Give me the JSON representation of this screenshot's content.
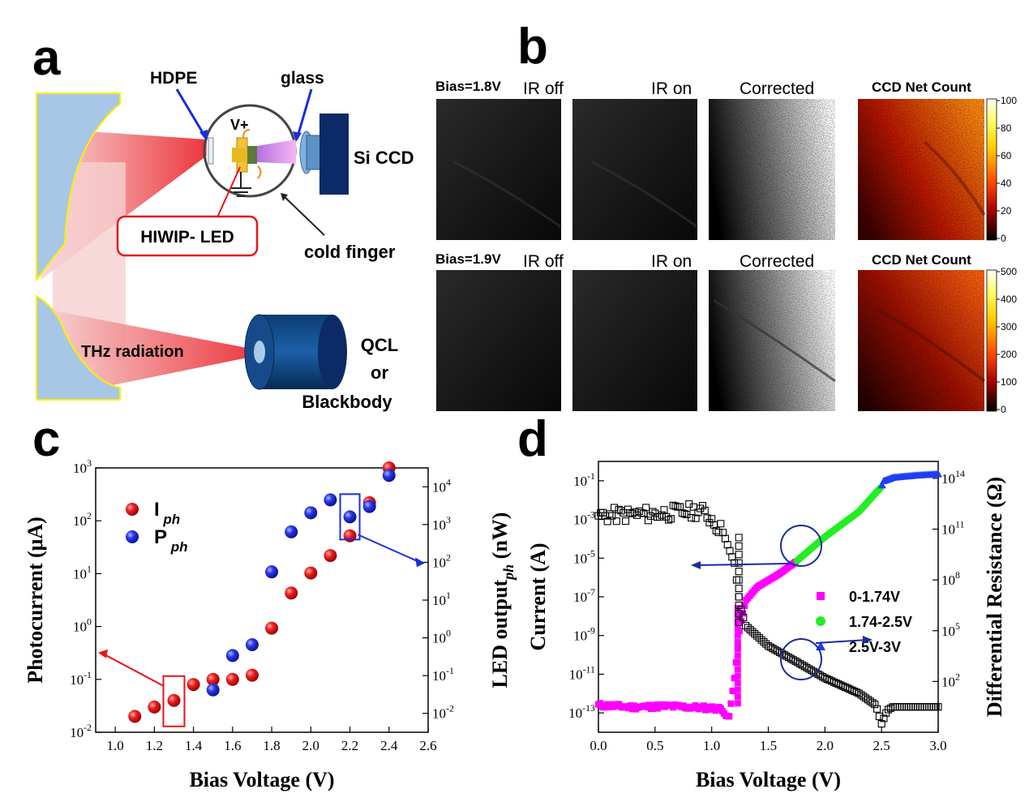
{
  "panels": {
    "a": "a",
    "b": "b",
    "c": "c",
    "d": "d"
  },
  "panel_a": {
    "hdpe": "HDPE",
    "glass": "glass",
    "vplus": "V+",
    "si_ccd": "Si CCD",
    "hiwip": "HIWIP- LED",
    "cold_finger": "cold finger",
    "thz": "THz radiation",
    "qcl": "QCL",
    "or": "or",
    "blackbody": "Blackbody"
  },
  "panel_b": {
    "row1_bias": "Bias=1.8V",
    "row2_bias": "Bias=1.9V",
    "ir_off": "IR off",
    "ir_on": "IR on",
    "corrected": "Corrected",
    "ccd_net_count": "CCD Net Count",
    "cb1_ticks": [
      "100",
      "80",
      "60",
      "40",
      "20",
      "0"
    ],
    "cb2_ticks": [
      "500",
      "400",
      "300",
      "200",
      "100",
      "0"
    ]
  },
  "chart_data": [
    {
      "id": "c",
      "type": "scatter",
      "xlabel": "Bias Voltage (V)",
      "ylabel": "Photocurrent (μA)",
      "y2label": "LED output",
      "y2label_sub": "ph",
      "y2label_unit": "(nW)",
      "xlim": [
        0.9,
        2.6
      ],
      "ylim_log10": [
        -2,
        3
      ],
      "y2lim_log10": [
        -2.5,
        4.5
      ],
      "x_ticks": [
        "1.0",
        "1.2",
        "1.4",
        "1.6",
        "1.8",
        "2.0",
        "2.2",
        "2.4",
        "2.6"
      ],
      "y_ticks": [
        {
          "base": "10",
          "exp": "-2"
        },
        {
          "base": "10",
          "exp": "-1"
        },
        {
          "base": "10",
          "exp": "0"
        },
        {
          "base": "10",
          "exp": "1"
        },
        {
          "base": "10",
          "exp": "2"
        },
        {
          "base": "10",
          "exp": "3"
        }
      ],
      "y2_ticks": [
        {
          "base": "10",
          "exp": "-2"
        },
        {
          "base": "10",
          "exp": "-1"
        },
        {
          "base": "10",
          "exp": "0"
        },
        {
          "base": "10",
          "exp": "1"
        },
        {
          "base": "10",
          "exp": "2"
        },
        {
          "base": "10",
          "exp": "3"
        },
        {
          "base": "10",
          "exp": "4"
        }
      ],
      "legend": [
        {
          "name": "I",
          "sub": "ph",
          "color": "#e8141b"
        },
        {
          "name": "P",
          "sub": "ph",
          "color": "#1a2de0"
        }
      ],
      "series": [
        {
          "name": "Iph",
          "axis": "left",
          "color": "#e8141b",
          "x": [
            1.1,
            1.2,
            1.3,
            1.4,
            1.5,
            1.6,
            1.7,
            1.8,
            1.9,
            2.0,
            2.1,
            2.2,
            2.3,
            2.4
          ],
          "y": [
            0.02,
            0.03,
            0.04,
            0.08,
            0.1,
            0.1,
            0.12,
            0.93,
            4.3,
            10.3,
            22,
            52,
            220,
            1000
          ]
        },
        {
          "name": "Pph",
          "axis": "right",
          "color": "#1a2de0",
          "x": [
            1.5,
            1.6,
            1.7,
            1.8,
            1.9,
            2.0,
            2.1,
            2.2,
            2.3,
            2.4
          ],
          "y": [
            0.042,
            0.34,
            0.66,
            56,
            640,
            2050,
            4500,
            1600,
            3000,
            20000
          ]
        }
      ]
    },
    {
      "id": "d",
      "type": "scatter",
      "xlabel": "Bias Voltage (V)",
      "ylabel": "Current (A)",
      "y2label": "Differential Resistance (Ω)",
      "xlim": [
        0.0,
        3.0
      ],
      "ylim_log10": [
        -14,
        0
      ],
      "y2lim_log10": [
        -1,
        15
      ],
      "x_ticks": [
        "0.0",
        "0.5",
        "1.0",
        "1.5",
        "2.0",
        "2.5",
        "3.0"
      ],
      "y_ticks": [
        {
          "base": "10",
          "exp": "-13"
        },
        {
          "base": "10",
          "exp": "-11"
        },
        {
          "base": "10",
          "exp": "-9"
        },
        {
          "base": "10",
          "exp": "-7"
        },
        {
          "base": "10",
          "exp": "-5"
        },
        {
          "base": "10",
          "exp": "-3"
        },
        {
          "base": "10",
          "exp": "-1"
        }
      ],
      "y2_ticks": [
        {
          "base": "10",
          "exp": "2"
        },
        {
          "base": "10",
          "exp": "5"
        },
        {
          "base": "10",
          "exp": "8"
        },
        {
          "base": "10",
          "exp": "11"
        },
        {
          "base": "10",
          "exp": "14"
        }
      ],
      "legend": [
        {
          "name": "0-1.74V",
          "color": "#ff00ff",
          "marker": "square"
        },
        {
          "name": "1.74-2.5V",
          "color": "#22ee22",
          "marker": "circle"
        },
        {
          "name": "2.5V-3V",
          "color": "#1e3ff0",
          "marker": "triangle"
        }
      ],
      "iv_anchors": [
        [
          0.0,
          -12.6
        ],
        [
          0.3,
          -12.7
        ],
        [
          0.6,
          -12.65
        ],
        [
          1.0,
          -12.75
        ],
        [
          1.1,
          -12.8
        ],
        [
          1.15,
          -13.4
        ],
        [
          1.2,
          -11.2
        ],
        [
          1.25,
          -8.5
        ],
        [
          1.3,
          -7.2
        ],
        [
          1.4,
          -6.5
        ],
        [
          1.6,
          -5.8
        ],
        [
          1.74,
          -5.2
        ],
        [
          2.0,
          -3.9
        ],
        [
          2.3,
          -2.6
        ],
        [
          2.5,
          -1.3
        ],
        [
          2.52,
          -1.0
        ],
        [
          2.6,
          -0.83
        ],
        [
          2.8,
          -0.72
        ],
        [
          3.0,
          -0.65
        ]
      ],
      "resistance_anchors": [
        [
          0.0,
          11.8
        ],
        [
          0.5,
          11.9
        ],
        [
          0.9,
          12.1
        ],
        [
          1.0,
          11.6
        ],
        [
          1.1,
          10.8
        ],
        [
          1.2,
          9.0
        ],
        [
          1.25,
          6.5
        ],
        [
          1.3,
          5.3
        ],
        [
          1.5,
          4.1
        ],
        [
          1.74,
          3.2
        ],
        [
          2.0,
          2.2
        ],
        [
          2.3,
          1.3
        ],
        [
          2.45,
          0.6
        ],
        [
          2.5,
          -0.5
        ],
        [
          2.55,
          0.3
        ],
        [
          2.6,
          0.5
        ],
        [
          3.0,
          0.5
        ]
      ]
    }
  ]
}
